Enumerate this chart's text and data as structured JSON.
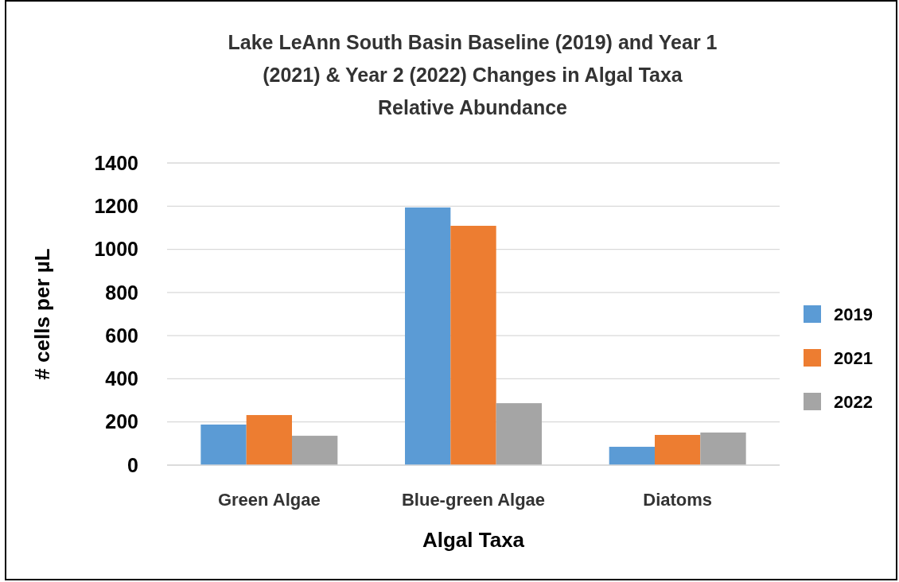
{
  "chart_data": {
    "type": "bar",
    "title": "Lake LeAnn South Basin Baseline (2019) and Year 1 (2021) & Year 2 (2022) Changes in Algal Taxa Relative Abundance",
    "xlabel": "Algal Taxa",
    "ylabel": "# cells per µL",
    "categories": [
      "Green Algae",
      "Blue-green Algae",
      "Diatoms"
    ],
    "series": [
      {
        "name": "2019",
        "color": "#5b9bd5",
        "values": [
          188,
          1194,
          85
        ]
      },
      {
        "name": "2021",
        "color": "#ed7d31",
        "values": [
          232,
          1109,
          140
        ]
      },
      {
        "name": "2022",
        "color": "#a5a5a5",
        "values": [
          136,
          287,
          151
        ]
      }
    ],
    "ylim": [
      0,
      1400
    ],
    "yticks": [
      0,
      200,
      400,
      600,
      800,
      1000,
      1200,
      1400
    ],
    "grid": "y",
    "legend": "right"
  }
}
